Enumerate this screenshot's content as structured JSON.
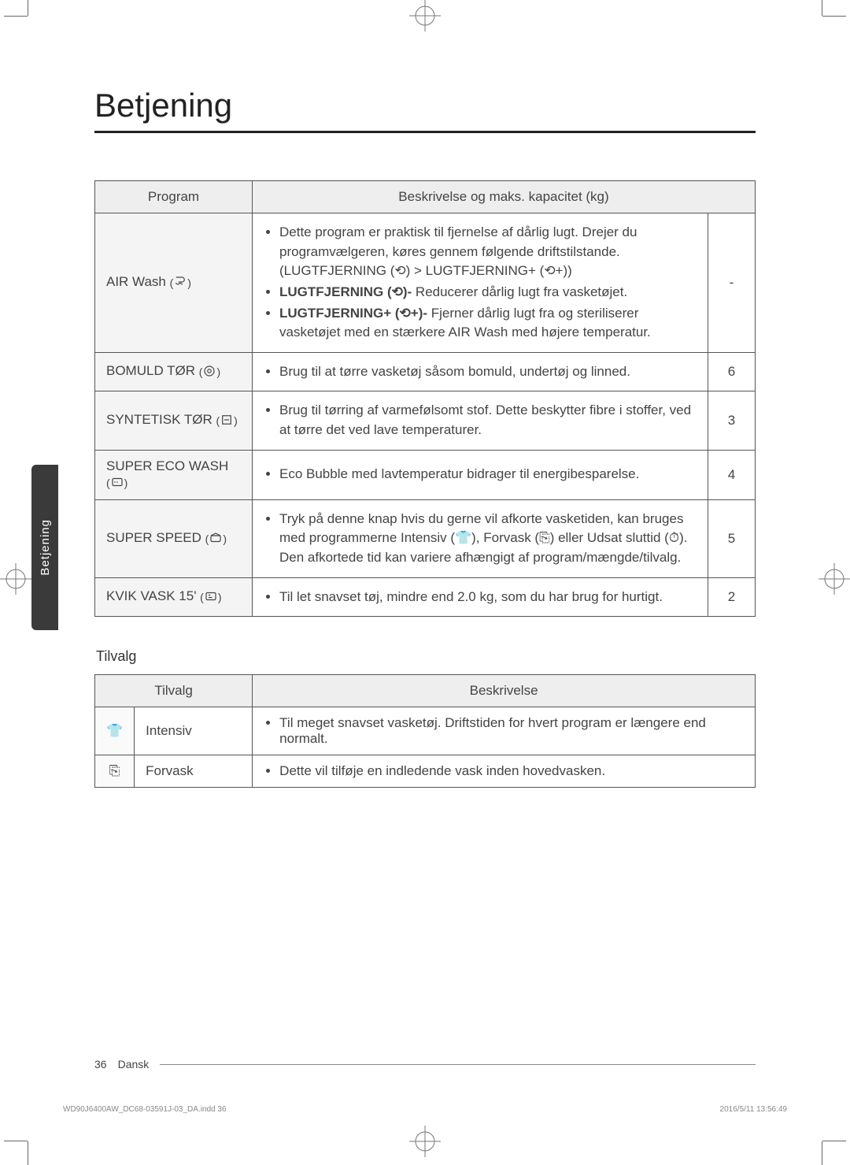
{
  "title": "Betjening",
  "side_tab": "Betjening",
  "programs": {
    "headers": {
      "program": "Program",
      "desc": "Beskrivelse og maks. kapacitet (kg)"
    },
    "rows": [
      {
        "name": "AIR Wash ",
        "name_glyph": "air-wash-icon",
        "desc_html": [
          "Dette program er praktisk til fjernelse af dårlig lugt. Drejer du programvælgeren, køres gennem følgende driftstilstande.(LUGTFJERNING (⟲) > LUGTFJERNING+ (⟲+))",
          "<b>LUGTFJERNING (⟲)-</b> Reducerer dårlig lugt fra vasketøjet.",
          "<b>LUGTFJERNING+ (⟲+)-</b> Fjerner dårlig lugt fra og steriliserer vasketøjet med en stærkere AIR Wash med højere temperatur."
        ],
        "cap": "-"
      },
      {
        "name": "BOMULD TØR ",
        "name_glyph": "cotton-dry-icon",
        "desc_html": [
          "Brug til at tørre vasketøj såsom bomuld, undertøj og linned."
        ],
        "cap": "6"
      },
      {
        "name": "SYNTETISK TØR ",
        "name_glyph": "synth-dry-icon",
        "desc_html": [
          "Brug til tørring af varmefølsomt stof. Dette beskytter fibre i stoffer, ved at tørre det ved lave temperaturer."
        ],
        "cap": "3"
      },
      {
        "name": "SUPER ECO WASH ",
        "name_glyph": "eco-icon",
        "desc_html": [
          "Eco Bubble med lavtemperatur bidrager til energibesparelse."
        ],
        "cap": "4"
      },
      {
        "name": "SUPER SPEED ",
        "name_glyph": "speed-icon",
        "desc_html": [
          "Tryk på denne knap hvis du gerne vil afkorte vasketiden, kan bruges med programmerne Intensiv (👕), Forvask (⎘) eller Udsat sluttid (⏱). Den afkortede tid kan variere afhængigt af program/mængde/tilvalg."
        ],
        "cap": "5"
      },
      {
        "name": "KVIK VASK 15' ",
        "name_glyph": "quick-icon",
        "desc_html": [
          "Til let snavset tøj, mindre end 2.0 kg, som du har brug for hurtigt."
        ],
        "cap": "2"
      }
    ]
  },
  "options": {
    "heading": "Tilvalg",
    "headers": {
      "option": "Tilvalg",
      "desc": "Beskrivelse"
    },
    "rows": [
      {
        "glyph": "👕",
        "glyph_name": "intensive-icon",
        "name": "Intensiv",
        "desc": "Til meget snavset vasketøj. Driftstiden for hvert program er længere end normalt."
      },
      {
        "glyph": "⎘",
        "glyph_name": "prewash-icon",
        "name": "Forvask",
        "desc": "Dette vil tilføje en indledende vask inden hovedvasken."
      }
    ]
  },
  "footer": {
    "page_no": "36",
    "lang": "Dansk"
  },
  "gutter": {
    "left": "WD90J6400AW_DC68-03591J-03_DA.indd   36",
    "right": "2016/5/11   13:56:49"
  },
  "colors": {
    "rule": "#222222",
    "border": "#555555",
    "header_bg": "#eeeeee",
    "name_bg": "#f4f4f4",
    "text": "#444444",
    "sidebar_bg": "#3a3a3a"
  }
}
